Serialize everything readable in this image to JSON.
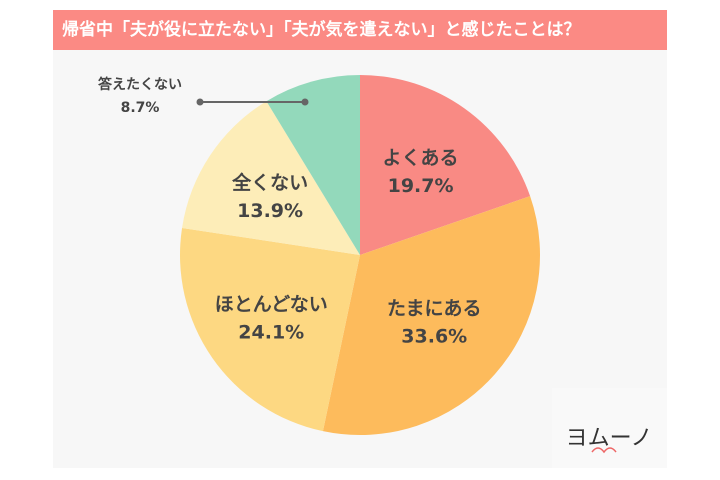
{
  "title": "帰省中「夫が役に立たない」「夫が気を遣えない」と感じたことは？",
  "logo_text": "ヨムーノ",
  "colors": {
    "title_bar": "#fb8a84",
    "background": "#f7f7f7",
    "label_text": "#444444"
  },
  "chart_data": {
    "type": "pie",
    "title": "帰省中「夫が役に立たない」「夫が気を遣えない」と感じたことは？",
    "start": "top",
    "direction": "clockwise",
    "slices": [
      {
        "label": "よくある",
        "value": 19.7,
        "display": "19.7%",
        "color": "#f98a84"
      },
      {
        "label": "たまにある",
        "value": 33.6,
        "display": "33.6%",
        "color": "#fdbb5c"
      },
      {
        "label": "ほとんどない",
        "value": 24.1,
        "display": "24.1%",
        "color": "#fdd882"
      },
      {
        "label": "全くない",
        "value": 13.9,
        "display": "13.9%",
        "color": "#fdedb8"
      },
      {
        "label": "答えたくない",
        "value": 8.7,
        "display": "8.7%",
        "color": "#93d9bb"
      }
    ]
  }
}
